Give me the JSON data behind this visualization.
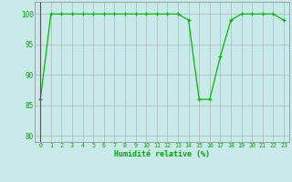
{
  "hours": [
    0,
    1,
    2,
    3,
    4,
    5,
    6,
    7,
    8,
    9,
    10,
    11,
    12,
    13,
    14,
    15,
    16,
    17,
    18,
    19,
    20,
    21,
    22,
    23
  ],
  "humidity": [
    86,
    100,
    100,
    100,
    100,
    100,
    100,
    100,
    100,
    100,
    100,
    100,
    100,
    100,
    99,
    86,
    86,
    93,
    99,
    100,
    100,
    100,
    100,
    99
  ],
  "line_color": "#00bb00",
  "marker_color": "#00bb00",
  "bg_color": "#c8eaea",
  "grid_color": "#aaaaaa",
  "xlabel": "Humidité relative (%)",
  "ylim": [
    79,
    102
  ],
  "yticks": [
    80,
    85,
    90,
    95,
    100
  ],
  "font_color": "#00aa00"
}
